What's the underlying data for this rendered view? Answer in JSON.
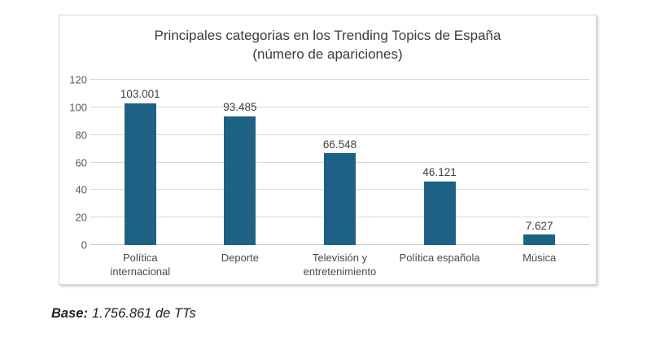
{
  "chart_data": {
    "type": "bar",
    "title": "Principales categorias en los Trending Topics de España (número de apariciones)",
    "title_lines": [
      "Principales categorias en los Trending Topics de España",
      "(número de apariciones)"
    ],
    "categories": [
      "Política internacional",
      "Deporte",
      "Televisión y entretenimiento",
      "Política española",
      "Música"
    ],
    "values": [
      103.001,
      93.485,
      66.548,
      46.121,
      7.627
    ],
    "value_labels": [
      "103.001",
      "93.485",
      "66.548",
      "46.121",
      "7.627"
    ],
    "values_absolute": [
      103001,
      93485,
      66548,
      46121,
      7627
    ],
    "xlabel": "",
    "ylabel": "",
    "ylim": [
      0,
      120
    ],
    "yticks": [
      0,
      20,
      40,
      60,
      80,
      100,
      120
    ],
    "grid": "horizontal",
    "legend": "none",
    "colors": {
      "bar": "#1d6285",
      "gridline": "#d9d9d9",
      "axis_text": "#595959",
      "title_text": "#3b3b3b",
      "frame_border": "#d6d6d6"
    }
  },
  "footer": {
    "base_label": "Base:",
    "base_value": "1.756.861 de TTs"
  }
}
